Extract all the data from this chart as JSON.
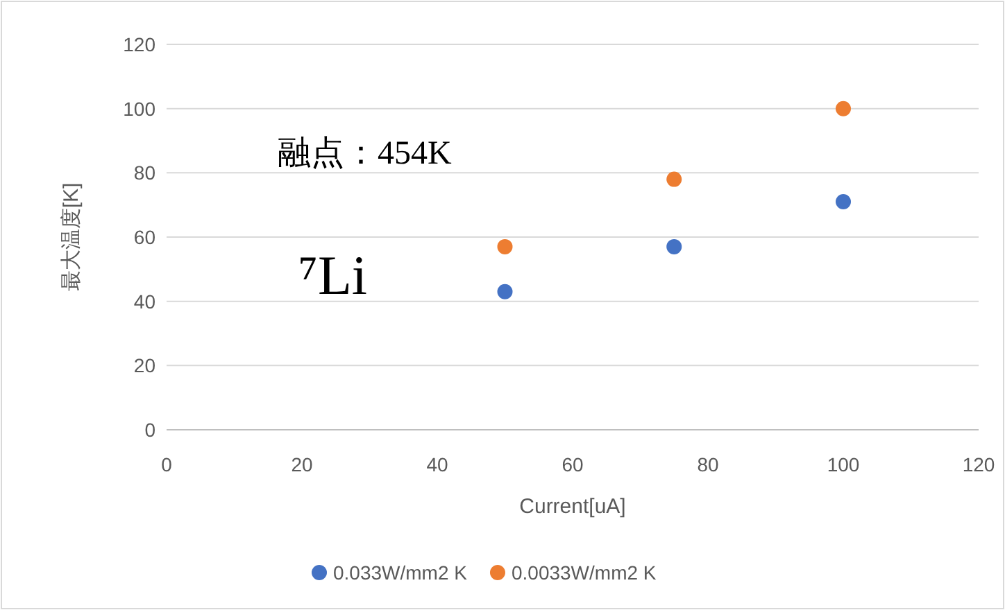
{
  "chart_data": {
    "type": "scatter",
    "xlabel": "Current[uA]",
    "ylabel": "最大温度[K]",
    "x": [
      50,
      75,
      100
    ],
    "series": [
      {
        "name": "0.033W/mm2 K",
        "color": "#4472c4",
        "values": [
          43,
          57,
          71
        ]
      },
      {
        "name": "0.0033W/mm2 K",
        "color": "#ed7d31",
        "values": [
          57,
          78,
          100
        ]
      }
    ],
    "xlim": [
      0,
      120
    ],
    "ylim": [
      0,
      120
    ],
    "xticks": [
      0,
      20,
      40,
      60,
      80,
      100,
      120
    ],
    "yticks": [
      0,
      20,
      40,
      60,
      80,
      100,
      120
    ],
    "grid": "y",
    "legend": "bottom",
    "marker": "circle",
    "annotations": [
      "融点：454K",
      "⁷Li"
    ]
  }
}
